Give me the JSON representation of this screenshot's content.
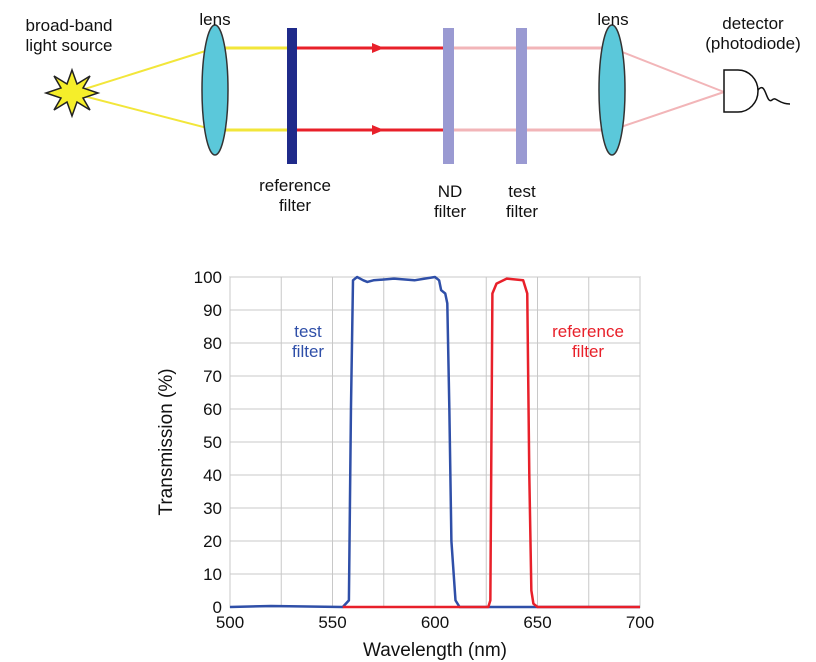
{
  "diagram": {
    "source": "broad-band\nlight source",
    "lens_left": "lens",
    "reference_filter": "reference\nfilter",
    "nd_filter": "ND\nfilter",
    "test_filter": "test\nfilter",
    "lens_right": "lens",
    "detector": "detector\n(photodiode)"
  },
  "chart_data": {
    "type": "line",
    "xlabel": "Wavelength (nm)",
    "ylabel": "Transmission (%)",
    "xlim": [
      500,
      700
    ],
    "ylim": [
      0,
      100
    ],
    "xticks": [
      500,
      550,
      600,
      650,
      700
    ],
    "x_minor_ticks": [
      525,
      575,
      625,
      675
    ],
    "yticks": [
      0,
      10,
      20,
      30,
      40,
      50,
      60,
      70,
      80,
      90,
      100
    ],
    "grid": true,
    "series": [
      {
        "name": "test\nfilter",
        "color": "#2f4fa8",
        "x": [
          500,
          520,
          555,
          558,
          559,
          560,
          562,
          565,
          567,
          570,
          580,
          590,
          595,
          600,
          602,
          603,
          605,
          606,
          607,
          608,
          610,
          612,
          700
        ],
        "values": [
          0,
          0.3,
          0,
          2,
          60,
          99,
          100,
          99,
          98.5,
          99,
          99.5,
          99,
          99.5,
          100,
          99,
          96,
          95,
          92,
          60,
          20,
          2,
          0,
          0
        ]
      },
      {
        "name": "reference\nfilter",
        "color": "#e8202a",
        "x": [
          555,
          626,
          627,
          628,
          630,
          635,
          643,
          645,
          646,
          647,
          648,
          650,
          700
        ],
        "values": [
          0,
          0,
          2,
          95,
          98,
          99.5,
          99,
          95,
          40,
          5,
          1,
          0,
          0
        ]
      }
    ]
  }
}
